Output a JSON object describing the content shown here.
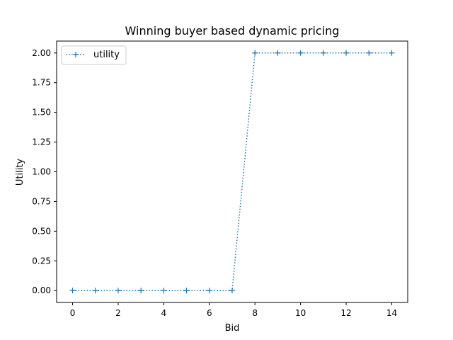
{
  "chart_data": {
    "type": "line",
    "title": "Winning buyer based dynamic pricing",
    "xlabel": "Bid",
    "ylabel": "Utility",
    "xlim": [
      -0.7,
      14.7
    ],
    "ylim": [
      -0.1,
      2.1
    ],
    "xticks": [
      "0",
      "2",
      "4",
      "6",
      "8",
      "10",
      "12",
      "14"
    ],
    "yticks": [
      "0.00",
      "0.25",
      "0.50",
      "0.75",
      "1.00",
      "1.25",
      "1.50",
      "1.75",
      "2.00"
    ],
    "grid": false,
    "legend_position": "upper-left",
    "series": [
      {
        "name": "utility",
        "color": "#1f77b4",
        "line_style": "dotted",
        "marker": "plus",
        "x": [
          0,
          1,
          2,
          3,
          4,
          5,
          6,
          7,
          8,
          9,
          10,
          11,
          12,
          13,
          14
        ],
        "y": [
          0,
          0,
          0,
          0,
          0,
          0,
          0,
          0,
          2,
          2,
          2,
          2,
          2,
          2,
          2
        ]
      }
    ]
  }
}
